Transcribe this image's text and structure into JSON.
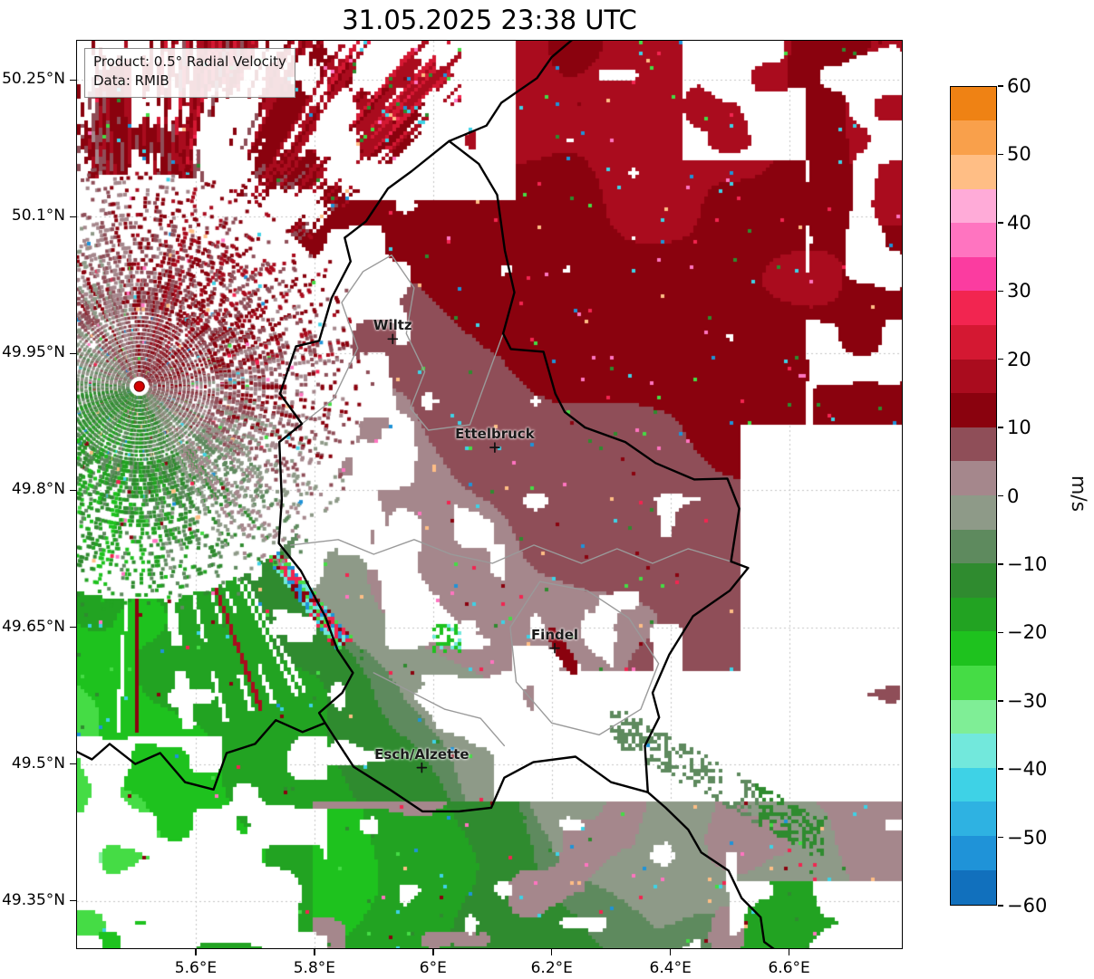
{
  "chart_data": {
    "type": "heatmap",
    "title": "31.05.2025 23:38 UTC",
    "info_box": {
      "product": "Product: 0.5° Radial Velocity",
      "source": "Data: RMIB"
    },
    "axes": {
      "lon_range": [
        5.4,
        6.79
      ],
      "lat_range": [
        49.298,
        50.293
      ],
      "grid": true,
      "lon_ticks": [
        {
          "value": 5.6,
          "label": "5.6°E"
        },
        {
          "value": 5.8,
          "label": "5.8°E"
        },
        {
          "value": 6.0,
          "label": "6°E"
        },
        {
          "value": 6.2,
          "label": "6.2°E"
        },
        {
          "value": 6.4,
          "label": "6.4°E"
        },
        {
          "value": 6.6,
          "label": "6.6°E"
        }
      ],
      "lat_ticks": [
        {
          "value": 50.25,
          "label": "50.25°N"
        },
        {
          "value": 50.1,
          "label": "50.1°N"
        },
        {
          "value": 49.95,
          "label": "49.95°N"
        },
        {
          "value": 49.8,
          "label": "49.8°N"
        },
        {
          "value": 49.65,
          "label": "49.65°N"
        },
        {
          "value": 49.5,
          "label": "49.5°N"
        },
        {
          "value": 49.35,
          "label": "49.35°N"
        }
      ]
    },
    "colorbar": {
      "unit": "m/s",
      "min": -60,
      "max": 60,
      "ticks": [
        {
          "value": 60,
          "label": "60"
        },
        {
          "value": 50,
          "label": "50"
        },
        {
          "value": 40,
          "label": "40"
        },
        {
          "value": 30,
          "label": "30"
        },
        {
          "value": 20,
          "label": "20"
        },
        {
          "value": 10,
          "label": "10"
        },
        {
          "value": 0,
          "label": "0"
        },
        {
          "value": -10,
          "label": "−10"
        },
        {
          "value": -20,
          "label": "−20"
        },
        {
          "value": -30,
          "label": "−30"
        },
        {
          "value": -40,
          "label": "−40"
        },
        {
          "value": -50,
          "label": "−50"
        },
        {
          "value": -60,
          "label": "−60"
        }
      ],
      "segments": [
        {
          "from": 55,
          "to": 60,
          "color": "#ef8214"
        },
        {
          "from": 50,
          "to": 55,
          "color": "#f9a04b"
        },
        {
          "from": 45,
          "to": 50,
          "color": "#ffbe85"
        },
        {
          "from": 40,
          "to": 45,
          "color": "#ffabd8"
        },
        {
          "from": 35,
          "to": 40,
          "color": "#ff74c0"
        },
        {
          "from": 30,
          "to": 35,
          "color": "#fb3ca0"
        },
        {
          "from": 25,
          "to": 30,
          "color": "#f22550"
        },
        {
          "from": 20,
          "to": 25,
          "color": "#d41832"
        },
        {
          "from": 15,
          "to": 20,
          "color": "#aa0c1e"
        },
        {
          "from": 10,
          "to": 15,
          "color": "#8a020e"
        },
        {
          "from": 5,
          "to": 10,
          "color": "#8f4e58"
        },
        {
          "from": 0,
          "to": 5,
          "color": "#a5878c"
        },
        {
          "from": -5,
          "to": 0,
          "color": "#8e9a88"
        },
        {
          "from": -10,
          "to": -5,
          "color": "#5e8a5e"
        },
        {
          "from": -15,
          "to": -10,
          "color": "#2f8b2f"
        },
        {
          "from": -20,
          "to": -15,
          "color": "#22a322"
        },
        {
          "from": -25,
          "to": -20,
          "color": "#1ec21e"
        },
        {
          "from": -30,
          "to": -25,
          "color": "#45dc45"
        },
        {
          "from": -35,
          "to": -30,
          "color": "#7fee96"
        },
        {
          "from": -40,
          "to": -35,
          "color": "#72e8dc"
        },
        {
          "from": -45,
          "to": -40,
          "color": "#3ed2e6"
        },
        {
          "from": -50,
          "to": -45,
          "color": "#2eb2e2"
        },
        {
          "from": -55,
          "to": -50,
          "color": "#1f93d8"
        },
        {
          "from": -60,
          "to": -55,
          "color": "#1170bd"
        }
      ]
    },
    "radar_site": {
      "lon": 5.505,
      "lat": 49.914,
      "marker_color": "#d40000",
      "marker_edge": "#7a0000"
    },
    "cities": [
      {
        "name": "Wiltz",
        "lon": 5.932,
        "lat": 49.966
      },
      {
        "name": "Ettelbruck",
        "lon": 6.104,
        "lat": 49.847
      },
      {
        "name": "Findel",
        "lon": 6.205,
        "lat": 49.627
      },
      {
        "name": "Esch/Alzette",
        "lon": 5.981,
        "lat": 49.496
      }
    ],
    "colors": {
      "no_data": "#ffffff",
      "country_border": "#000000",
      "district_border": "#9a9a9a",
      "grid": "#c6c6c6"
    },
    "field_summary": {
      "description": "Doppler radial velocity field over Luxembourg; SW→NE flow: inbound (green) southwest of the radar, outbound (dark red) northeast, grey-mauve zero-isodop band running NW–SE through the radar; radial speckled spokes near the radar site; white = no echo.",
      "regions": [
        {
          "area": "northeast and east of radar",
          "velocity_mps": "+10 to +20",
          "color": "dark red",
          "meaning": "outbound"
        },
        {
          "area": "central band Wiltz–Ettelbruck–Findel–Esch",
          "velocity_mps": "0 to +10",
          "color": "grey-mauve",
          "meaning": "near-zero"
        },
        {
          "area": "south and southwest of radar",
          "velocity_mps": "-5 to -20",
          "color": "green",
          "meaning": "inbound"
        },
        {
          "area": "near radar / northwest sector",
          "velocity_mps": "mixed, speckled ±",
          "color": "red, mauve, green, cyan, pink streaks",
          "meaning": "sparse echoes and aliased bins"
        },
        {
          "area": "white zones (top centre, far east, southeast)",
          "velocity_mps": "no data",
          "color": "white",
          "meaning": "no echo"
        }
      ]
    },
    "borders": {
      "country": [
        [
          6.027,
          50.183
        ],
        [
          6.077,
          50.158
        ],
        [
          6.108,
          50.124
        ],
        [
          6.121,
          50.063
        ],
        [
          6.137,
          50.017
        ],
        [
          6.118,
          49.972
        ],
        [
          6.131,
          49.955
        ],
        [
          6.186,
          49.952
        ],
        [
          6.206,
          49.906
        ],
        [
          6.222,
          49.886
        ],
        [
          6.256,
          49.869
        ],
        [
          6.324,
          49.853
        ],
        [
          6.375,
          49.83
        ],
        [
          6.44,
          49.812
        ],
        [
          6.496,
          49.813
        ],
        [
          6.516,
          49.78
        ],
        [
          6.502,
          49.722
        ],
        [
          6.531,
          49.715
        ],
        [
          6.5,
          49.69
        ],
        [
          6.438,
          49.662
        ],
        [
          6.398,
          49.62
        ],
        [
          6.37,
          49.578
        ],
        [
          6.381,
          49.551
        ],
        [
          6.357,
          49.52
        ],
        [
          6.362,
          49.469
        ],
        [
          6.3,
          49.48
        ],
        [
          6.24,
          49.508
        ],
        [
          6.169,
          49.502
        ],
        [
          6.12,
          49.485
        ],
        [
          6.098,
          49.452
        ],
        [
          6.044,
          49.448
        ],
        [
          5.982,
          49.448
        ],
        [
          5.927,
          49.472
        ],
        [
          5.866,
          49.497
        ],
        [
          5.818,
          49.545
        ],
        [
          5.808,
          49.556
        ],
        [
          5.847,
          49.578
        ],
        [
          5.865,
          49.6
        ],
        [
          5.839,
          49.625
        ],
        [
          5.818,
          49.662
        ],
        [
          5.777,
          49.712
        ],
        [
          5.74,
          49.742
        ],
        [
          5.745,
          49.79
        ],
        [
          5.741,
          49.853
        ],
        [
          5.779,
          49.873
        ],
        [
          5.742,
          49.906
        ],
        [
          5.769,
          49.958
        ],
        [
          5.808,
          49.964
        ],
        [
          5.829,
          50.011
        ],
        [
          5.861,
          50.051
        ],
        [
          5.851,
          50.077
        ],
        [
          5.887,
          50.095
        ],
        [
          5.924,
          50.131
        ],
        [
          5.964,
          50.15
        ],
        [
          6.027,
          50.183
        ]
      ],
      "country_extensions": [
        [
          [
            6.027,
            50.183
          ],
          [
            6.09,
            50.2
          ],
          [
            6.115,
            50.225
          ],
          [
            6.175,
            50.252
          ],
          [
            6.2,
            50.275
          ],
          [
            6.245,
            50.3
          ]
        ],
        [
          [
            5.818,
            49.545
          ],
          [
            5.78,
            49.535
          ],
          [
            5.735,
            49.548
          ],
          [
            5.7,
            49.522
          ],
          [
            5.652,
            49.512
          ],
          [
            5.63,
            49.472
          ],
          [
            5.582,
            49.48
          ],
          [
            5.54,
            49.512
          ],
          [
            5.498,
            49.5
          ],
          [
            5.455,
            49.522
          ],
          [
            5.425,
            49.505
          ],
          [
            5.395,
            49.515
          ]
        ],
        [
          [
            6.362,
            49.469
          ],
          [
            6.392,
            49.452
          ],
          [
            6.43,
            49.428
          ],
          [
            6.452,
            49.403
          ],
          [
            6.498,
            49.383
          ],
          [
            6.52,
            49.353
          ],
          [
            6.552,
            49.332
          ],
          [
            6.558,
            49.305
          ],
          [
            6.585,
            49.292
          ]
        ]
      ],
      "districts": [
        [
          [
            5.779,
            49.873
          ],
          [
            5.832,
            49.9
          ],
          [
            5.873,
            49.956
          ],
          [
            5.846,
            50.006
          ],
          [
            5.882,
            50.04
          ],
          [
            5.93,
            50.058
          ],
          [
            5.968,
            50.022
          ],
          [
            5.955,
            49.972
          ],
          [
            5.986,
            49.93
          ],
          [
            5.962,
            49.89
          ],
          [
            5.992,
            49.866
          ],
          [
            6.062,
            49.872
          ],
          [
            6.118,
            49.972
          ]
        ],
        [
          [
            5.76,
            49.74
          ],
          [
            5.84,
            49.746
          ],
          [
            5.9,
            49.73
          ],
          [
            5.968,
            49.746
          ],
          [
            6.03,
            49.73
          ],
          [
            6.1,
            49.72
          ],
          [
            6.17,
            49.74
          ],
          [
            6.25,
            49.72
          ],
          [
            6.31,
            49.736
          ],
          [
            6.37,
            49.72
          ],
          [
            6.43,
            49.736
          ],
          [
            6.502,
            49.722
          ]
        ],
        [
          [
            6.18,
            49.7
          ],
          [
            6.26,
            49.69
          ],
          [
            6.33,
            49.66
          ],
          [
            6.38,
            49.61
          ],
          [
            6.35,
            49.56
          ],
          [
            6.28,
            49.532
          ],
          [
            6.2,
            49.545
          ],
          [
            6.14,
            49.59
          ],
          [
            6.13,
            49.65
          ],
          [
            6.18,
            49.7
          ]
        ],
        [
          [
            5.9,
            49.6
          ],
          [
            5.96,
            49.58
          ],
          [
            6.02,
            49.56
          ],
          [
            6.08,
            49.55
          ],
          [
            6.12,
            49.52
          ]
        ]
      ]
    }
  }
}
